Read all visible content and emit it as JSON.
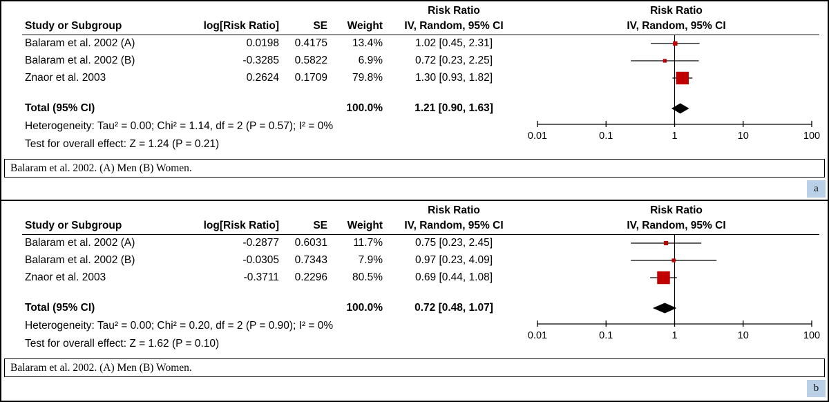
{
  "figure": {
    "panel_a_tag": "a",
    "panel_b_tag": "b"
  },
  "chart_data": [
    {
      "type": "forest",
      "panel_label": "a",
      "effect_header": "Risk Ratio",
      "method_header": "IV, Random, 95% CI",
      "columns": {
        "study": "Study or Subgroup",
        "log_rr": "log[Risk Ratio]",
        "se": "SE",
        "weight": "Weight",
        "ci": "IV, Random, 95% CI"
      },
      "marker_color": "#c00000",
      "x_scale": "log",
      "x_ticks": [
        0.01,
        0.1,
        1,
        10,
        100
      ],
      "studies": [
        {
          "name": "Balaram et al. 2002 (A)",
          "log_rr": "0.0198",
          "se": "0.4175",
          "weight": "13.4%",
          "weight_pct": 13.4,
          "ci_text": "1.02 [0.45, 2.31]",
          "est": 1.02,
          "lo": 0.45,
          "hi": 2.31
        },
        {
          "name": "Balaram et al. 2002 (B)",
          "log_rr": "-0.3285",
          "se": "0.5822",
          "weight": "6.9%",
          "weight_pct": 6.9,
          "ci_text": "0.72 [0.23, 2.25]",
          "est": 0.72,
          "lo": 0.23,
          "hi": 2.25
        },
        {
          "name": "Znaor et al. 2003",
          "log_rr": "0.2624",
          "se": "0.1709",
          "weight": "79.8%",
          "weight_pct": 79.8,
          "ci_text": "1.30 [0.93, 1.82]",
          "est": 1.3,
          "lo": 0.93,
          "hi": 1.82
        }
      ],
      "total": {
        "label": "Total (95% CI)",
        "weight": "100.0%",
        "ci_text": "1.21 [0.90, 1.63]",
        "est": 1.21,
        "lo": 0.9,
        "hi": 1.63
      },
      "heterogeneity": "Heterogeneity: Tau² = 0.00; Chi² = 1.14, df = 2 (P = 0.57); I² = 0%",
      "overall_effect": "Test for overall effect: Z = 1.24 (P = 0.21)",
      "footnote": "Balaram et al. 2002. (A) Men (B) Women."
    },
    {
      "type": "forest",
      "panel_label": "b",
      "effect_header": "Risk Ratio",
      "method_header": "IV, Random, 95% CI",
      "columns": {
        "study": "Study or Subgroup",
        "log_rr": "log[Risk Ratio]",
        "se": "SE",
        "weight": "Weight",
        "ci": "IV, Random, 95% CI"
      },
      "marker_color": "#c00000",
      "x_scale": "log",
      "x_ticks": [
        0.01,
        0.1,
        1,
        10,
        100
      ],
      "studies": [
        {
          "name": "Balaram et al. 2002 (A)",
          "log_rr": "-0.2877",
          "se": "0.6031",
          "weight": "11.7%",
          "weight_pct": 11.7,
          "ci_text": "0.75 [0.23, 2.45]",
          "est": 0.75,
          "lo": 0.23,
          "hi": 2.45
        },
        {
          "name": "Balaram et al. 2002 (B)",
          "log_rr": "-0.0305",
          "se": "0.7343",
          "weight": "7.9%",
          "weight_pct": 7.9,
          "ci_text": "0.97 [0.23, 4.09]",
          "est": 0.97,
          "lo": 0.23,
          "hi": 4.09
        },
        {
          "name": "Znaor et al. 2003",
          "log_rr": "-0.3711",
          "se": "0.2296",
          "weight": "80.5%",
          "weight_pct": 80.5,
          "ci_text": "0.69 [0.44, 1.08]",
          "est": 0.69,
          "lo": 0.44,
          "hi": 1.08
        }
      ],
      "total": {
        "label": "Total (95% CI)",
        "weight": "100.0%",
        "ci_text": "0.72 [0.48, 1.07]",
        "est": 0.72,
        "lo": 0.48,
        "hi": 1.07
      },
      "heterogeneity": "Heterogeneity: Tau² = 0.00; Chi² = 0.20, df = 2 (P = 0.90); I² = 0%",
      "overall_effect": "Test for overall effect: Z = 1.62 (P = 0.10)",
      "footnote": "Balaram et al. 2002. (A) Men (B) Women."
    }
  ]
}
